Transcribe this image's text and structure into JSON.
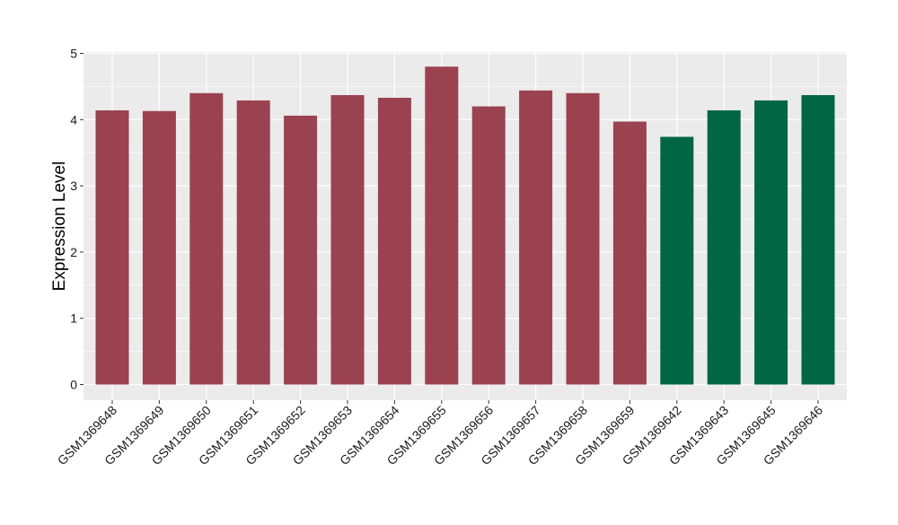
{
  "chart_data": {
    "type": "bar",
    "title": "",
    "xlabel": "",
    "ylabel": "Expression Level",
    "ylim": [
      0,
      5
    ],
    "yticks": [
      0,
      1,
      2,
      3,
      4,
      5
    ],
    "grid": true,
    "categories": [
      "GSM1369648",
      "GSM1369649",
      "GSM1369650",
      "GSM1369651",
      "GSM1369652",
      "GSM1369653",
      "GSM1369654",
      "GSM1369655",
      "GSM1369656",
      "GSM1369657",
      "GSM1369658",
      "GSM1369659",
      "GSM1369642",
      "GSM1369643",
      "GSM1369645",
      "GSM1369646"
    ],
    "values": [
      4.14,
      4.13,
      4.4,
      4.29,
      4.06,
      4.37,
      4.33,
      4.8,
      4.2,
      4.44,
      4.4,
      3.97,
      3.74,
      4.14,
      4.29,
      4.37
    ],
    "bar_colors": [
      "#9B4250",
      "#9B4250",
      "#9B4250",
      "#9B4250",
      "#9B4250",
      "#9B4250",
      "#9B4250",
      "#9B4250",
      "#9B4250",
      "#9B4250",
      "#9B4250",
      "#9B4250",
      "#006644",
      "#006644",
      "#006644",
      "#006644"
    ],
    "panel_background": "#EBEBEB",
    "grid_color": "#FFFFFF"
  }
}
